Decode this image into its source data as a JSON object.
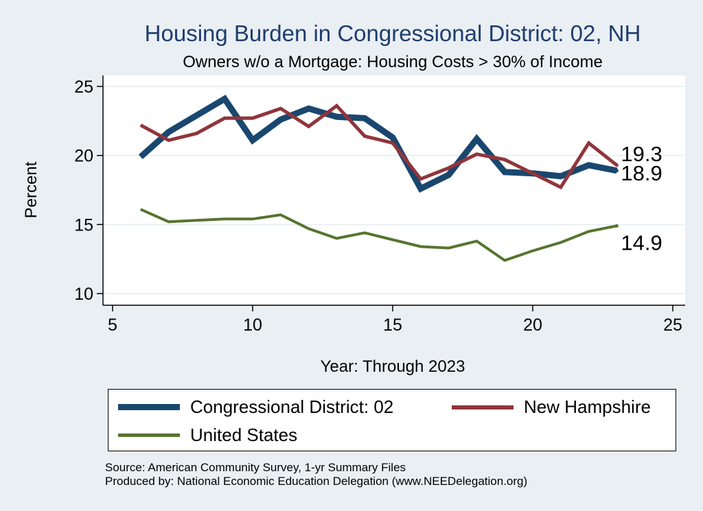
{
  "chart_data": {
    "type": "line",
    "title": "Housing Burden in Congressional District:  02, NH",
    "subtitle": "Owners w/o a Mortgage: Housing Costs > 30% of Income",
    "xlabel": "Year: Through 2023",
    "ylabel": "Percent",
    "xlim": [
      5,
      25
    ],
    "ylim": [
      10,
      25
    ],
    "xticks": [
      5,
      10,
      15,
      20,
      25
    ],
    "yticks": [
      10,
      15,
      20,
      25
    ],
    "grid": true,
    "legend_position": "bottom",
    "series": [
      {
        "name": "Congressional District:  02",
        "color": "#1a476f",
        "x": [
          6,
          7,
          8,
          9,
          10,
          11,
          12,
          13,
          14,
          15,
          16,
          17,
          18,
          19,
          20,
          21,
          22,
          23
        ],
        "values": [
          19.9,
          21.7,
          22.9,
          24.1,
          21.1,
          22.6,
          23.4,
          22.8,
          22.7,
          21.3,
          17.6,
          18.6,
          21.2,
          18.8,
          18.7,
          18.5,
          19.3,
          18.9
        ],
        "end_label": "18.9"
      },
      {
        "name": "New Hampshire",
        "color": "#90353b",
        "x": [
          6,
          7,
          8,
          9,
          10,
          11,
          12,
          13,
          14,
          15,
          16,
          17,
          18,
          19,
          20,
          21,
          22,
          23
        ],
        "values": [
          22.2,
          21.1,
          21.6,
          22.7,
          22.7,
          23.4,
          22.1,
          23.6,
          21.4,
          20.9,
          18.3,
          19.1,
          20.1,
          19.7,
          18.7,
          17.7,
          20.9,
          19.3
        ],
        "end_label": "19.3"
      },
      {
        "name": "United States",
        "color": "#55752f",
        "x": [
          6,
          7,
          8,
          9,
          10,
          11,
          12,
          13,
          14,
          15,
          16,
          17,
          18,
          19,
          20,
          21,
          22,
          23
        ],
        "values": [
          16.1,
          15.2,
          15.3,
          15.4,
          15.4,
          15.7,
          14.7,
          14.0,
          14.4,
          13.9,
          13.4,
          13.3,
          13.8,
          12.4,
          13.1,
          13.7,
          14.5,
          14.9
        ],
        "end_label": "14.9"
      }
    ]
  },
  "legend": {
    "items": [
      {
        "label": "Congressional District:  02",
        "color": "#1a476f"
      },
      {
        "label": "New Hampshire",
        "color": "#90353b"
      },
      {
        "label": "United States",
        "color": "#55752f"
      }
    ]
  },
  "notes": {
    "source": "Source: American Community Survey, 1-yr Summary Files",
    "produced": "Produced by: National Economic Education Delegation (www.NEEDelegation.org)"
  }
}
